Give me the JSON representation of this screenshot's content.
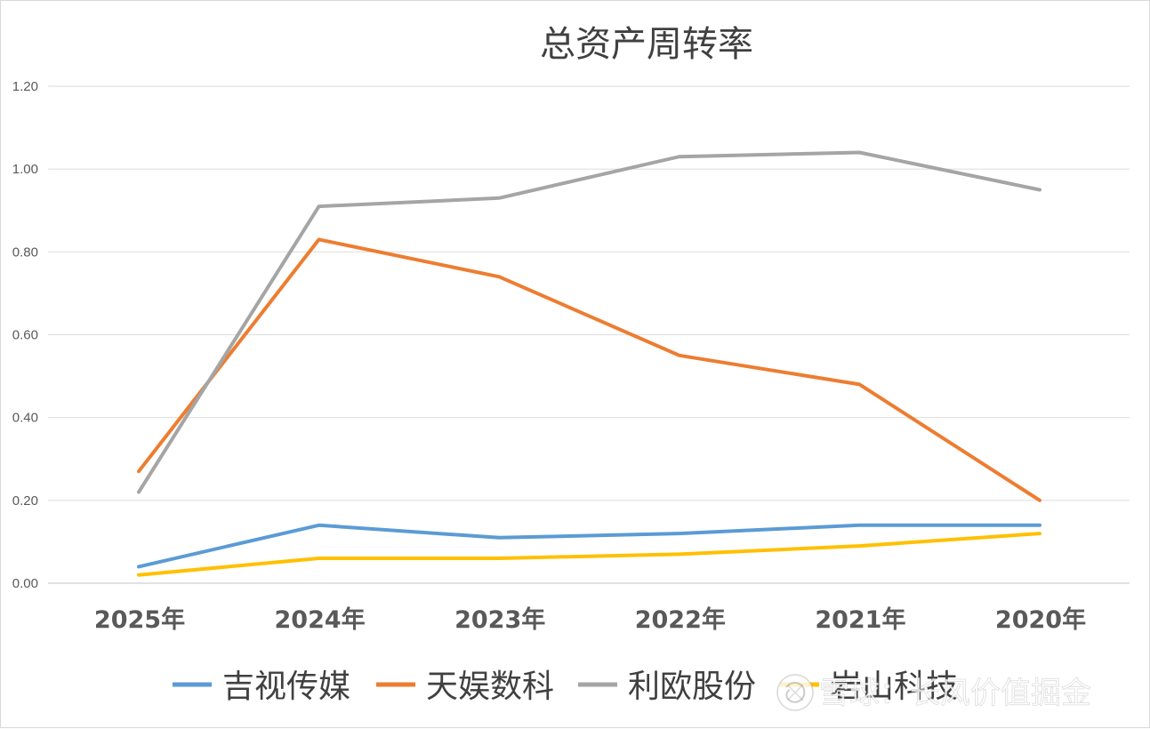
{
  "chart_data": {
    "type": "line",
    "title": "总资产周转率",
    "categories": [
      "2025年",
      "2024年",
      "2023年",
      "2022年",
      "2021年",
      "2020年"
    ],
    "ylim": [
      0,
      1.2
    ],
    "yticks": [
      "0.00",
      "0.20",
      "0.40",
      "0.60",
      "0.80",
      "1.00",
      "1.20"
    ],
    "grid": true,
    "legend_position": "bottom",
    "series": [
      {
        "name": "吉视传媒",
        "color": "#5B9BD5",
        "values": [
          0.04,
          0.14,
          0.11,
          0.12,
          0.14,
          0.14
        ]
      },
      {
        "name": "天娱数科",
        "color": "#ED7D31",
        "values": [
          0.27,
          0.83,
          0.74,
          0.55,
          0.48,
          0.2
        ]
      },
      {
        "name": "利欧股份",
        "color": "#A5A5A5",
        "values": [
          0.22,
          0.91,
          0.93,
          1.03,
          1.04,
          0.95
        ]
      },
      {
        "name": "岩山科技",
        "color": "#FFC000",
        "values": [
          0.02,
          0.06,
          0.06,
          0.07,
          0.09,
          0.12
        ]
      }
    ]
  },
  "watermark": {
    "icon": "snowball-logo-icon",
    "text": "雪球：长风价值掘金"
  }
}
